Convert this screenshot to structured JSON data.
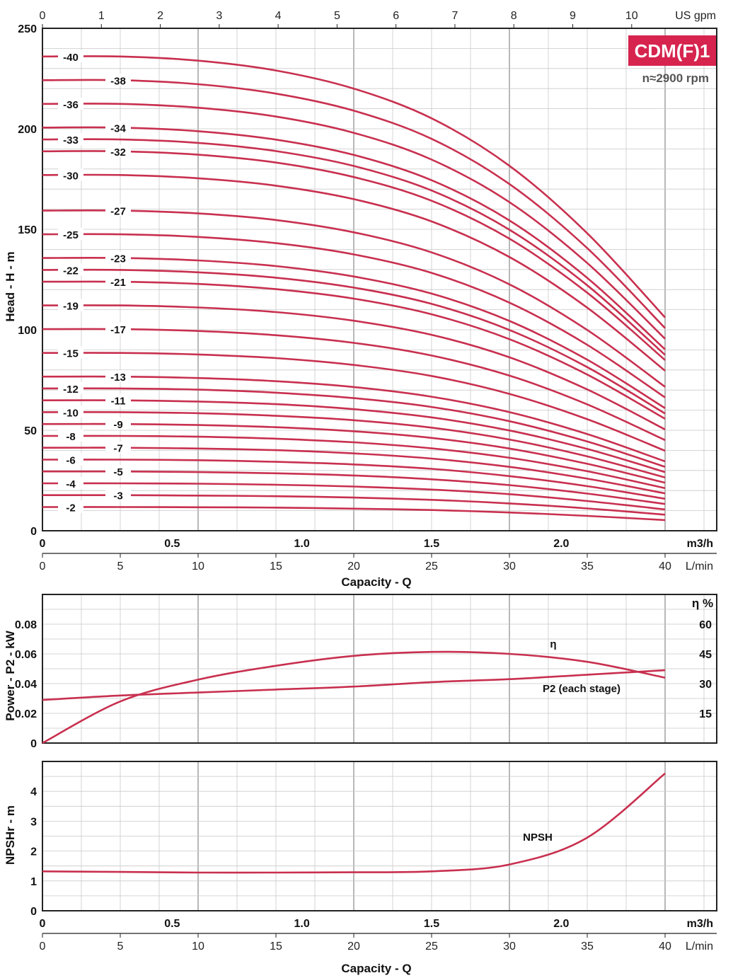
{
  "chart_data": [
    {
      "type": "line",
      "badge": "CDM(F)1",
      "speed": "n≈2900 rpm",
      "ylabel": "Head - H - m",
      "xlabel": "Capacity - Q",
      "ylim": [
        0,
        250
      ],
      "yticks": [
        "0",
        "50",
        "100",
        "150",
        "200",
        "250"
      ],
      "top_axis": {
        "unit": "US gpm",
        "ticks": [
          "0",
          "1",
          "2",
          "3",
          "4",
          "5",
          "6",
          "7",
          "8",
          "9",
          "10"
        ]
      },
      "m3h_axis": {
        "unit": "m3/h",
        "ticks": [
          "0",
          "0.5",
          "1.0",
          "1.5",
          "2.0"
        ]
      },
      "lmin_axis": {
        "unit": "L/min",
        "ticks": [
          "0",
          "5",
          "10",
          "15",
          "20",
          "25",
          "30",
          "35",
          "40"
        ]
      },
      "x": [
        0,
        5,
        10,
        15,
        20,
        25,
        30,
        35,
        40
      ],
      "series": [
        {
          "name": "-2",
          "values": [
            11.8,
            11.8,
            11.7,
            11.5,
            11.0,
            10.3,
            9.1,
            7.4,
            5.3
          ]
        },
        {
          "name": "-3",
          "values": [
            17.7,
            17.7,
            17.5,
            17.2,
            16.5,
            15.4,
            13.6,
            11.1,
            8.0
          ]
        },
        {
          "name": "-4",
          "values": [
            23.6,
            23.6,
            23.4,
            22.9,
            22.0,
            20.5,
            18.2,
            14.8,
            10.6
          ]
        },
        {
          "name": "-5",
          "values": [
            29.5,
            29.5,
            29.2,
            28.6,
            27.5,
            25.6,
            22.7,
            18.5,
            13.3
          ]
        },
        {
          "name": "-6",
          "values": [
            35.4,
            35.4,
            35.1,
            34.3,
            33.0,
            30.8,
            27.2,
            22.2,
            15.9
          ]
        },
        {
          "name": "-7",
          "values": [
            41.3,
            41.3,
            40.9,
            40.1,
            38.5,
            35.9,
            31.8,
            25.9,
            18.6
          ]
        },
        {
          "name": "-8",
          "values": [
            47.2,
            47.2,
            46.8,
            45.8,
            44.0,
            41.0,
            36.3,
            29.6,
            21.2
          ]
        },
        {
          "name": "-9",
          "values": [
            53.1,
            53.1,
            52.6,
            51.5,
            49.5,
            46.2,
            40.9,
            33.3,
            23.9
          ]
        },
        {
          "name": "-10",
          "values": [
            59.0,
            59.0,
            58.5,
            57.2,
            55.0,
            51.3,
            45.4,
            37.0,
            26.5
          ]
        },
        {
          "name": "-11",
          "values": [
            64.9,
            64.9,
            64.3,
            63.0,
            60.5,
            56.4,
            49.9,
            40.7,
            29.2
          ]
        },
        {
          "name": "-12",
          "values": [
            70.8,
            70.8,
            70.2,
            68.7,
            66.0,
            61.6,
            54.5,
            44.4,
            31.8
          ]
        },
        {
          "name": "-13",
          "values": [
            76.7,
            76.7,
            76.0,
            74.4,
            71.5,
            66.7,
            59.0,
            48.1,
            34.5
          ]
        },
        {
          "name": "-15",
          "values": [
            88.5,
            88.5,
            87.7,
            85.9,
            82.5,
            77.0,
            68.1,
            55.5,
            39.8
          ]
        },
        {
          "name": "-17",
          "values": [
            100.3,
            100.3,
            99.4,
            97.3,
            93.5,
            87.2,
            77.2,
            62.9,
            45.1
          ]
        },
        {
          "name": "-19",
          "values": [
            112.1,
            112.1,
            111.1,
            108.8,
            104.5,
            97.5,
            86.3,
            70.3,
            50.4
          ]
        },
        {
          "name": "-21",
          "values": [
            123.9,
            123.9,
            122.8,
            120.2,
            115.5,
            107.7,
            95.3,
            77.7,
            55.7
          ]
        },
        {
          "name": "-22",
          "values": [
            129.8,
            129.8,
            128.6,
            125.9,
            121.0,
            112.9,
            99.9,
            81.4,
            58.3
          ]
        },
        {
          "name": "-23",
          "values": [
            135.7,
            135.7,
            134.5,
            131.7,
            126.5,
            118.0,
            104.4,
            85.1,
            61.0
          ]
        },
        {
          "name": "-25",
          "values": [
            147.5,
            147.5,
            146.2,
            143.1,
            137.5,
            128.3,
            113.5,
            92.5,
            66.3
          ]
        },
        {
          "name": "-27",
          "values": [
            159.3,
            159.3,
            157.9,
            154.6,
            148.5,
            138.5,
            122.6,
            99.9,
            71.6
          ]
        },
        {
          "name": "-30",
          "values": [
            177.0,
            177.0,
            175.4,
            171.7,
            165.0,
            153.9,
            136.2,
            111.0,
            79.6
          ]
        },
        {
          "name": "-32",
          "values": [
            188.8,
            188.8,
            187.1,
            183.2,
            176.0,
            164.2,
            145.3,
            118.4,
            84.9
          ]
        },
        {
          "name": "-33",
          "values": [
            194.7,
            194.7,
            193.0,
            188.9,
            181.5,
            169.3,
            149.8,
            122.1,
            87.5
          ]
        },
        {
          "name": "-34",
          "values": [
            200.6,
            200.6,
            198.8,
            194.6,
            187.0,
            174.4,
            154.4,
            125.8,
            90.2
          ]
        },
        {
          "name": "-36",
          "values": [
            212.4,
            212.4,
            210.5,
            206.1,
            198.0,
            184.7,
            163.5,
            133.2,
            95.5
          ]
        },
        {
          "name": "-38",
          "values": [
            224.2,
            224.2,
            222.2,
            217.5,
            209.0,
            195.0,
            172.5,
            140.6,
            100.8
          ]
        },
        {
          "name": "-40",
          "values": [
            236.0,
            236.0,
            233.9,
            229.0,
            220.0,
            205.2,
            181.6,
            148.0,
            106.1
          ]
        }
      ]
    },
    {
      "type": "line",
      "ylabel": "Power - P2 - kW",
      "ylim": [
        0,
        0.1
      ],
      "yticks": [
        "0",
        "0.02",
        "0.04",
        "0.06",
        "0.08"
      ],
      "right_axis": {
        "label": "η %",
        "ticks": [
          "15",
          "30",
          "45",
          "60"
        ],
        "ylim": [
          0,
          75
        ]
      },
      "x": [
        0,
        5,
        10,
        15,
        20,
        25,
        30,
        35,
        40
      ],
      "series": [
        {
          "name": "η",
          "axis": "right",
          "values": [
            0,
            21,
            32,
            39,
            44,
            46,
            45,
            41,
            33
          ]
        },
        {
          "name": "P2 (each stage)",
          "axis": "left",
          "values": [
            0.029,
            0.032,
            0.034,
            0.036,
            0.038,
            0.041,
            0.043,
            0.046,
            0.049
          ]
        }
      ]
    },
    {
      "type": "line",
      "ylabel": "NPSHr - m",
      "xlabel": "Capacity - Q",
      "ylim": [
        0,
        5
      ],
      "yticks": [
        "0",
        "1",
        "2",
        "3",
        "4"
      ],
      "m3h_axis": {
        "unit": "m3/h",
        "ticks": [
          "0",
          "0.5",
          "1.0",
          "1.5",
          "2.0"
        ]
      },
      "lmin_axis": {
        "unit": "L/min",
        "ticks": [
          "0",
          "5",
          "10",
          "15",
          "20",
          "25",
          "30",
          "35",
          "40"
        ]
      },
      "x": [
        0,
        5,
        10,
        15,
        20,
        25,
        30,
        35,
        40
      ],
      "series": [
        {
          "name": "NPSH",
          "values": [
            1.32,
            1.3,
            1.28,
            1.28,
            1.29,
            1.32,
            1.55,
            2.45,
            4.6
          ]
        }
      ]
    }
  ],
  "colors": {
    "curve": "#c8304f",
    "badge": "#d6244f",
    "grid": "#c9c9c9",
    "frame": "#222222"
  }
}
